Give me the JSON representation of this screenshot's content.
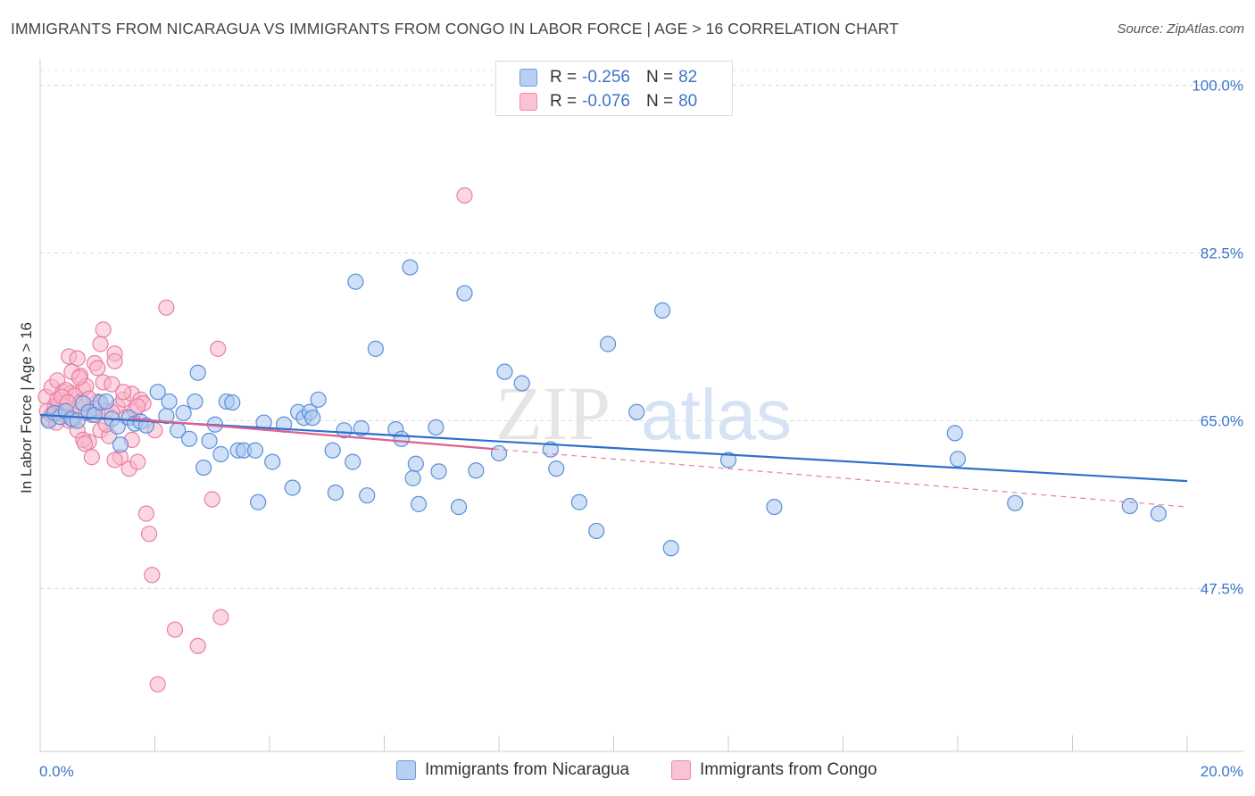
{
  "title": "IMMIGRANTS FROM NICARAGUA VS IMMIGRANTS FROM CONGO IN LABOR FORCE | AGE > 16 CORRELATION CHART",
  "source": "Source: ZipAtlas.com",
  "watermark": {
    "zip": "ZIP",
    "atlas": "atlas"
  },
  "legend": {
    "rows": [
      {
        "r_label": "R =",
        "r_value": "-0.256",
        "n_label": "N =",
        "n_value": "82",
        "fill": "#b7d0f2",
        "stroke": "#6f9be0"
      },
      {
        "r_label": "R =",
        "r_value": "-0.076",
        "n_label": "N =",
        "n_value": "80",
        "fill": "#f9c3d4",
        "stroke": "#ee8aaa"
      }
    ]
  },
  "bottom_legend": [
    "Immigrants from Nicaragua",
    "Immigrants from Congo"
  ],
  "chart_data": {
    "type": "scatter",
    "title": "IMMIGRANTS FROM NICARAGUA VS IMMIGRANTS FROM CONGO IN LABOR FORCE | AGE > 16 CORRELATION CHART",
    "xlabel": "",
    "ylabel": "In Labor Force | Age > 16",
    "xlim": [
      0,
      20
    ],
    "ylim": [
      30.5,
      102
    ],
    "x_tick_labels": [
      "0.0%",
      "20.0%"
    ],
    "y_ticks": [
      47.5,
      65.0,
      82.5,
      100.0
    ],
    "y_tick_labels": [
      "47.5%",
      "65.0%",
      "82.5%",
      "100.0%"
    ],
    "grid": true,
    "colors": {
      "blue_fill": "#a9c7ef",
      "blue_stroke": "#5b8fd8",
      "pink_fill": "#f7b6cb",
      "pink_stroke": "#ea7fa2",
      "blue_line": "#2f6fcd",
      "pink_line": "#e05f8e"
    },
    "series": [
      {
        "name": "Immigrants from Nicaragua",
        "R": -0.256,
        "N": 82,
        "trend": {
          "x": [
            0.0,
            20.0
          ],
          "y": [
            65.6,
            58.7
          ],
          "dashed_after": null
        },
        "points": [
          [
            0.15,
            65.0
          ],
          [
            0.25,
            65.8
          ],
          [
            0.35,
            65.4
          ],
          [
            0.45,
            66.0
          ],
          [
            0.55,
            65.2
          ],
          [
            0.65,
            65.0
          ],
          [
            0.75,
            66.8
          ],
          [
            0.85,
            65.9
          ],
          [
            0.95,
            65.6
          ],
          [
            1.05,
            66.9
          ],
          [
            1.15,
            67.0
          ],
          [
            1.25,
            65.2
          ],
          [
            1.35,
            64.4
          ],
          [
            1.4,
            62.5
          ],
          [
            1.55,
            65.3
          ],
          [
            1.65,
            64.7
          ],
          [
            1.75,
            64.9
          ],
          [
            1.85,
            64.5
          ],
          [
            2.05,
            68.0
          ],
          [
            2.2,
            65.5
          ],
          [
            2.25,
            67.0
          ],
          [
            2.4,
            64.0
          ],
          [
            2.5,
            65.8
          ],
          [
            2.6,
            63.1
          ],
          [
            2.7,
            67.0
          ],
          [
            2.75,
            70.0
          ],
          [
            2.85,
            60.1
          ],
          [
            2.95,
            62.9
          ],
          [
            3.05,
            64.6
          ],
          [
            3.15,
            61.5
          ],
          [
            3.25,
            67.0
          ],
          [
            3.35,
            66.9
          ],
          [
            3.45,
            61.9
          ],
          [
            3.55,
            61.9
          ],
          [
            3.75,
            61.9
          ],
          [
            3.8,
            56.5
          ],
          [
            3.9,
            64.8
          ],
          [
            4.05,
            60.7
          ],
          [
            4.25,
            64.6
          ],
          [
            4.4,
            58.0
          ],
          [
            4.5,
            65.9
          ],
          [
            4.6,
            65.3
          ],
          [
            4.7,
            65.9
          ],
          [
            4.75,
            65.3
          ],
          [
            4.85,
            67.2
          ],
          [
            5.1,
            61.9
          ],
          [
            5.15,
            57.5
          ],
          [
            5.3,
            64.0
          ],
          [
            5.45,
            60.7
          ],
          [
            5.5,
            79.5
          ],
          [
            5.6,
            64.2
          ],
          [
            5.7,
            57.2
          ],
          [
            5.85,
            72.5
          ],
          [
            6.2,
            64.1
          ],
          [
            6.3,
            63.1
          ],
          [
            6.45,
            81.0
          ],
          [
            6.5,
            59.0
          ],
          [
            6.55,
            60.5
          ],
          [
            6.6,
            56.3
          ],
          [
            6.9,
            64.3
          ],
          [
            6.95,
            59.7
          ],
          [
            7.3,
            56.0
          ],
          [
            7.4,
            78.3
          ],
          [
            7.6,
            59.8
          ],
          [
            8.0,
            61.6
          ],
          [
            8.1,
            70.1
          ],
          [
            8.4,
            68.9
          ],
          [
            8.9,
            62.0
          ],
          [
            9.0,
            60.0
          ],
          [
            9.4,
            56.5
          ],
          [
            9.7,
            53.5
          ],
          [
            9.9,
            73.0
          ],
          [
            10.4,
            65.9
          ],
          [
            10.85,
            76.5
          ],
          [
            11.0,
            51.7
          ],
          [
            12.0,
            60.9
          ],
          [
            12.8,
            56.0
          ],
          [
            15.95,
            63.7
          ],
          [
            16.0,
            61.0
          ],
          [
            17.0,
            56.4
          ],
          [
            19.0,
            56.1
          ],
          [
            19.5,
            55.3
          ]
        ]
      },
      {
        "name": "Immigrants from Congo",
        "R": -0.076,
        "N": 80,
        "trend": {
          "x": [
            0.0,
            20.0
          ],
          "y": [
            66.0,
            56.0
          ],
          "dashed_after": 7.9
        },
        "points": [
          [
            0.1,
            67.5
          ],
          [
            0.15,
            65.2
          ],
          [
            0.2,
            68.5
          ],
          [
            0.25,
            66.1
          ],
          [
            0.3,
            69.2
          ],
          [
            0.35,
            66.8
          ],
          [
            0.4,
            68.0
          ],
          [
            0.45,
            65.5
          ],
          [
            0.5,
            71.7
          ],
          [
            0.55,
            67.9
          ],
          [
            0.6,
            66.2
          ],
          [
            0.65,
            71.5
          ],
          [
            0.7,
            69.7
          ],
          [
            0.75,
            68.3
          ],
          [
            0.8,
            65.8
          ],
          [
            0.85,
            62.8
          ],
          [
            0.9,
            61.2
          ],
          [
            0.95,
            71.0
          ],
          [
            1.0,
            67.0
          ],
          [
            1.05,
            64.0
          ],
          [
            1.1,
            69.0
          ],
          [
            1.15,
            66.0
          ],
          [
            1.2,
            63.4
          ],
          [
            1.25,
            68.8
          ],
          [
            1.3,
            72.0
          ],
          [
            1.35,
            66.5
          ],
          [
            1.4,
            61.2
          ],
          [
            1.45,
            67.2
          ],
          [
            1.5,
            65.4
          ],
          [
            1.55,
            60.0
          ],
          [
            1.6,
            67.8
          ],
          [
            1.65,
            66.0
          ],
          [
            1.7,
            60.7
          ],
          [
            1.75,
            67.2
          ],
          [
            1.8,
            66.8
          ],
          [
            1.85,
            55.3
          ],
          [
            1.9,
            53.2
          ],
          [
            1.95,
            48.9
          ],
          [
            2.0,
            64.0
          ],
          [
            2.05,
            37.5
          ],
          [
            2.2,
            76.8
          ],
          [
            2.35,
            43.2
          ],
          [
            2.75,
            41.5
          ],
          [
            3.0,
            56.8
          ],
          [
            3.1,
            72.5
          ],
          [
            3.15,
            44.5
          ],
          [
            1.1,
            74.5
          ],
          [
            1.05,
            73.0
          ],
          [
            0.25,
            66.5
          ],
          [
            0.3,
            67.2
          ],
          [
            0.35,
            65.7
          ],
          [
            0.4,
            66.0
          ],
          [
            0.45,
            68.2
          ],
          [
            0.5,
            65.0
          ],
          [
            0.55,
            70.1
          ],
          [
            0.6,
            67.6
          ],
          [
            0.65,
            64.0
          ],
          [
            0.7,
            66.9
          ],
          [
            0.75,
            63.0
          ],
          [
            0.8,
            68.6
          ],
          [
            0.85,
            67.3
          ],
          [
            0.9,
            65.6
          ],
          [
            0.95,
            66.3
          ],
          [
            1.0,
            70.5
          ],
          [
            1.15,
            64.6
          ],
          [
            1.25,
            65.9
          ],
          [
            1.3,
            71.2
          ],
          [
            1.45,
            68.0
          ],
          [
            1.6,
            63.0
          ],
          [
            1.7,
            66.5
          ],
          [
            0.12,
            66.0
          ],
          [
            0.2,
            65.6
          ],
          [
            0.28,
            64.8
          ],
          [
            0.38,
            67.5
          ],
          [
            0.48,
            66.9
          ],
          [
            0.58,
            65.1
          ],
          [
            0.68,
            69.5
          ],
          [
            0.78,
            62.6
          ],
          [
            1.3,
            60.9
          ],
          [
            7.4,
            88.5
          ]
        ]
      }
    ]
  }
}
